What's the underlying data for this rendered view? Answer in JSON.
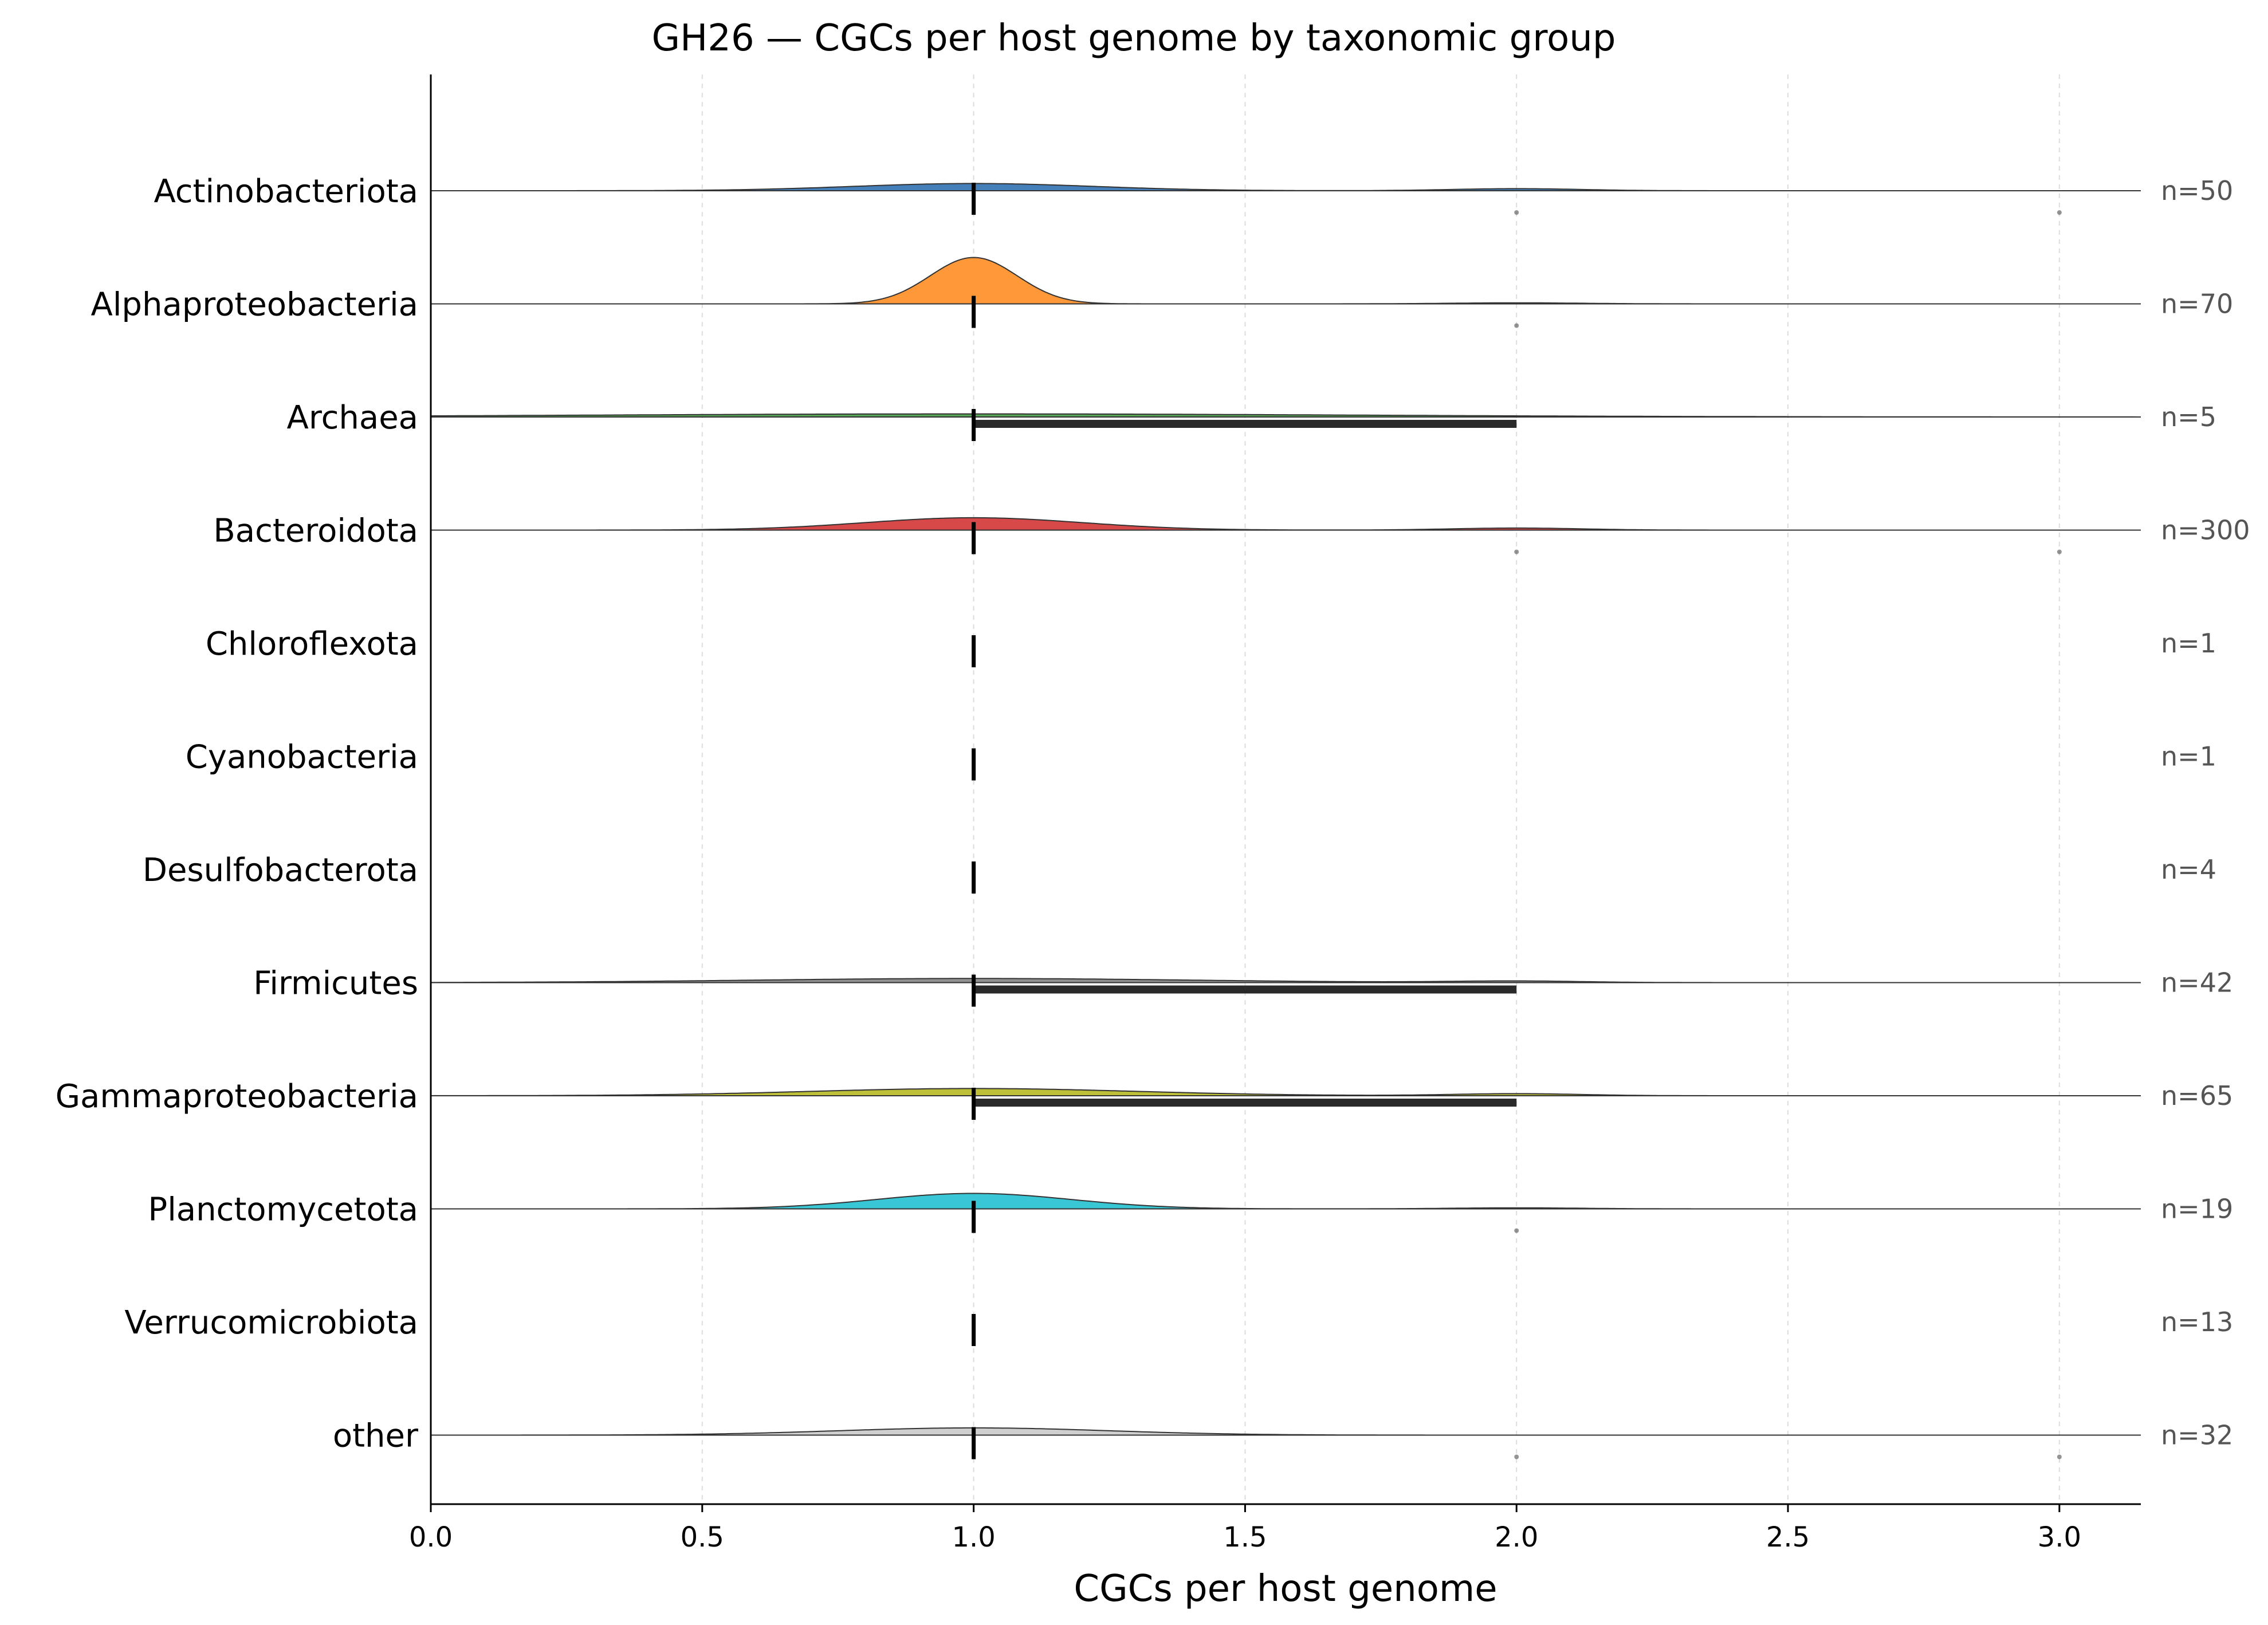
{
  "chart_data": {
    "type": "ridgeline",
    "title": "GH26 — CGCs per host genome by taxonomic group",
    "xlabel": "CGCs per host genome",
    "ylabel": "",
    "xlim": [
      0.0,
      3.15
    ],
    "xticks": [
      0.0,
      0.5,
      1.0,
      1.5,
      2.0,
      2.5,
      3.0
    ],
    "xtick_labels": [
      "0.0",
      "0.5",
      "1.0",
      "1.5",
      "2.0",
      "2.5",
      "3.0"
    ],
    "grid": "vertical dashed",
    "legend": "none",
    "groups": [
      {
        "name": "Actinobacteriota",
        "n_label": "n=50",
        "color": "#3a78b5",
        "median": 1.0,
        "iqr": [
          1.0,
          1.0
        ],
        "peak": 0.07,
        "bw": 0.22,
        "secondary": [
          [
            2.0,
            0.02
          ]
        ],
        "outliers": [
          2.0,
          3.0
        ]
      },
      {
        "name": "Alphaproteobacteria",
        "n_label": "n=70",
        "color": "#ff922e",
        "median": 1.0,
        "iqr": [
          1.0,
          1.0
        ],
        "peak": 0.45,
        "bw": 0.08,
        "secondary": [
          [
            2.0,
            0.01
          ]
        ],
        "outliers": [
          2.0
        ]
      },
      {
        "name": "Archaea",
        "n_label": "n=5",
        "color": "#4ea04e",
        "median": 1.0,
        "iqr": [
          1.0,
          2.0
        ],
        "peak": 0.03,
        "bw": 0.7,
        "secondary": [],
        "outliers": []
      },
      {
        "name": "Bacteroidota",
        "n_label": "n=300",
        "color": "#d53e3e",
        "median": 1.0,
        "iqr": [
          1.0,
          1.0
        ],
        "peak": 0.12,
        "bw": 0.2,
        "secondary": [
          [
            2.0,
            0.02
          ]
        ],
        "outliers": [
          2.0,
          3.0
        ]
      },
      {
        "name": "Chloroflexota",
        "n_label": "n=1",
        "color": "#9b70c0",
        "median": 1.0,
        "iqr": [
          1.0,
          1.0
        ],
        "peak": 0.0,
        "bw": 0.2,
        "secondary": [],
        "outliers": []
      },
      {
        "name": "Cyanobacteria",
        "n_label": "n=1",
        "color": "#8c5a4a",
        "median": 1.0,
        "iqr": [
          1.0,
          1.0
        ],
        "peak": 0.0,
        "bw": 0.2,
        "secondary": [],
        "outliers": []
      },
      {
        "name": "Desulfobacterota",
        "n_label": "n=4",
        "color": "#e07fc4",
        "median": 1.0,
        "iqr": [
          1.0,
          1.0
        ],
        "peak": 0.0,
        "bw": 0.2,
        "secondary": [],
        "outliers": []
      },
      {
        "name": "Firmicutes",
        "n_label": "n=42",
        "color": "#8c8c8c",
        "median": 1.0,
        "iqr": [
          1.0,
          2.0
        ],
        "peak": 0.04,
        "bw": 0.4,
        "secondary": [
          [
            2.0,
            0.015
          ]
        ],
        "outliers": []
      },
      {
        "name": "Gammaproteobacteria",
        "n_label": "n=65",
        "color": "#bcbd2e",
        "median": 1.0,
        "iqr": [
          1.0,
          2.0
        ],
        "peak": 0.07,
        "bw": 0.3,
        "secondary": [
          [
            2.0,
            0.02
          ]
        ],
        "outliers": []
      },
      {
        "name": "Planctomycetota",
        "n_label": "n=19",
        "color": "#2ec4d4",
        "median": 1.0,
        "iqr": [
          1.0,
          1.0
        ],
        "peak": 0.15,
        "bw": 0.18,
        "secondary": [
          [
            2.0,
            0.01
          ]
        ],
        "outliers": [
          2.0
        ]
      },
      {
        "name": "Verrucomicrobiota",
        "n_label": "n=13",
        "color": "#6fa8dc",
        "median": 1.0,
        "iqr": [
          1.0,
          1.0
        ],
        "peak": 0.0,
        "bw": 0.2,
        "secondary": [],
        "outliers": []
      },
      {
        "name": "other",
        "n_label": "n=32",
        "color": "#cccccc",
        "median": 1.0,
        "iqr": [
          1.0,
          1.0
        ],
        "peak": 0.07,
        "bw": 0.25,
        "secondary": [],
        "outliers": [
          2.0,
          3.0
        ]
      }
    ]
  }
}
